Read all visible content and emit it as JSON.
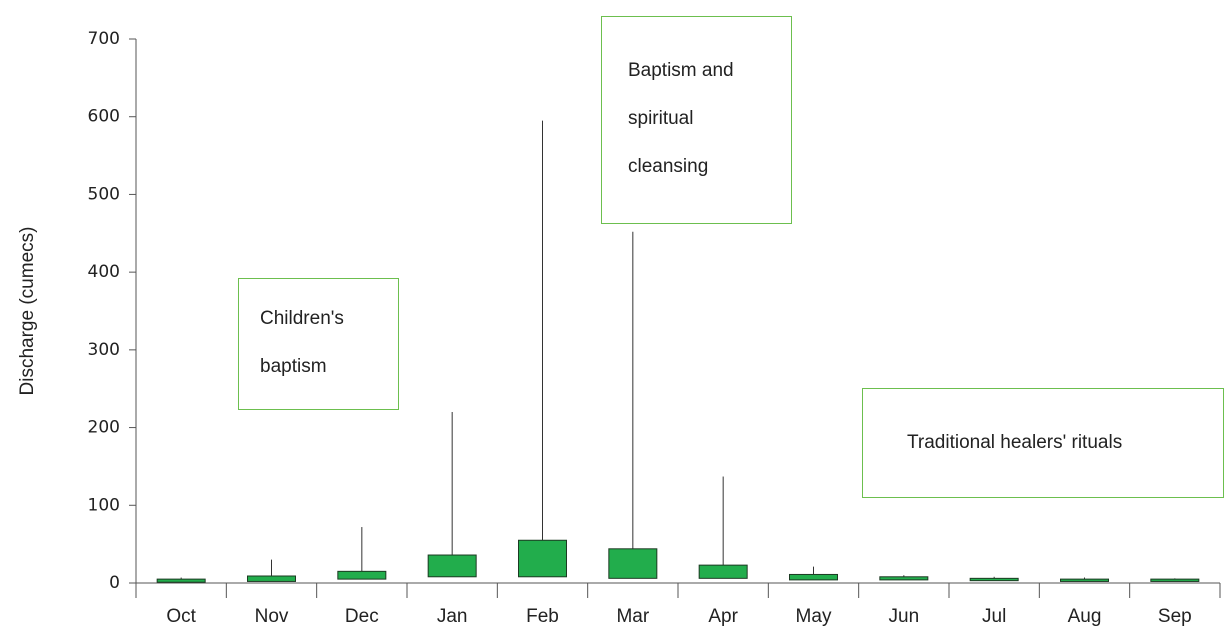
{
  "chart_data": {
    "type": "box",
    "y_label": "Discharge (cumecs)",
    "categories": [
      "Oct",
      "Nov",
      "Dec",
      "Jan",
      "Feb",
      "Mar",
      "Apr",
      "May",
      "Jun",
      "Jul",
      "Aug",
      "Sep"
    ],
    "color": "#22ad4c",
    "q1": [
      1,
      2,
      5,
      8,
      8,
      6,
      6,
      4,
      4,
      3,
      2,
      2
    ],
    "q3": [
      5,
      9,
      15,
      36,
      55,
      44,
      23,
      11,
      8,
      6,
      5,
      5
    ],
    "max": [
      7,
      30,
      72,
      220,
      595,
      452,
      137,
      21,
      10,
      8,
      7,
      6
    ],
    "ylim": [
      0,
      700
    ],
    "yticks": [
      0,
      100,
      200,
      300,
      400,
      500,
      600,
      700
    ],
    "annotations": [
      {
        "text": "Children's baptism"
      },
      {
        "text": "Baptism and spiritual cleansing"
      },
      {
        "text": "Traditional healers' rituals"
      }
    ]
  }
}
